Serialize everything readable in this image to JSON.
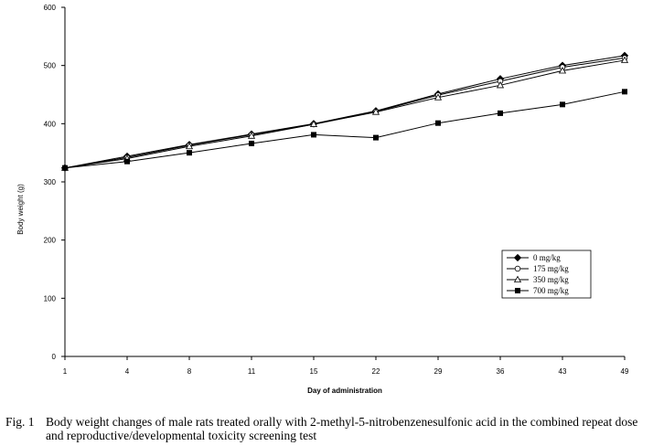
{
  "chart_data": {
    "type": "line",
    "title": "",
    "xlabel": "Day of administration",
    "ylabel": "Body weight (g)",
    "categories": [
      "1",
      "4",
      "8",
      "11",
      "15",
      "22",
      "29",
      "36",
      "43",
      "49"
    ],
    "ylim": [
      0,
      600
    ],
    "yticks": [
      "0",
      "100",
      "200",
      "300",
      "400",
      "500",
      "600"
    ],
    "grid": false,
    "legend_position": "right",
    "series": [
      {
        "name": "0 mg/kg",
        "marker": "diamond-filled",
        "values": [
          324,
          344,
          364,
          382,
          400,
          422,
          451,
          477,
          500,
          517
        ]
      },
      {
        "name": "175 mg/kg",
        "marker": "circle-open",
        "values": [
          324,
          342,
          363,
          381,
          399,
          421,
          449,
          473,
          497,
          513
        ]
      },
      {
        "name": "350 mg/kg",
        "marker": "triangle-open",
        "values": [
          324,
          340,
          361,
          379,
          399,
          420,
          445,
          466,
          491,
          509
        ]
      },
      {
        "name": "700 mg/kg",
        "marker": "square-filled",
        "values": [
          324,
          335,
          350,
          366,
          381,
          376,
          401,
          418,
          433,
          455
        ]
      }
    ]
  },
  "caption": {
    "label": "Fig. 1",
    "text": "Body weight changes of male rats treated orally with 2-methyl-5-nitrobenzenesulfonic acid in the combined repeat dose and reproductive/developmental toxicity screening test"
  }
}
